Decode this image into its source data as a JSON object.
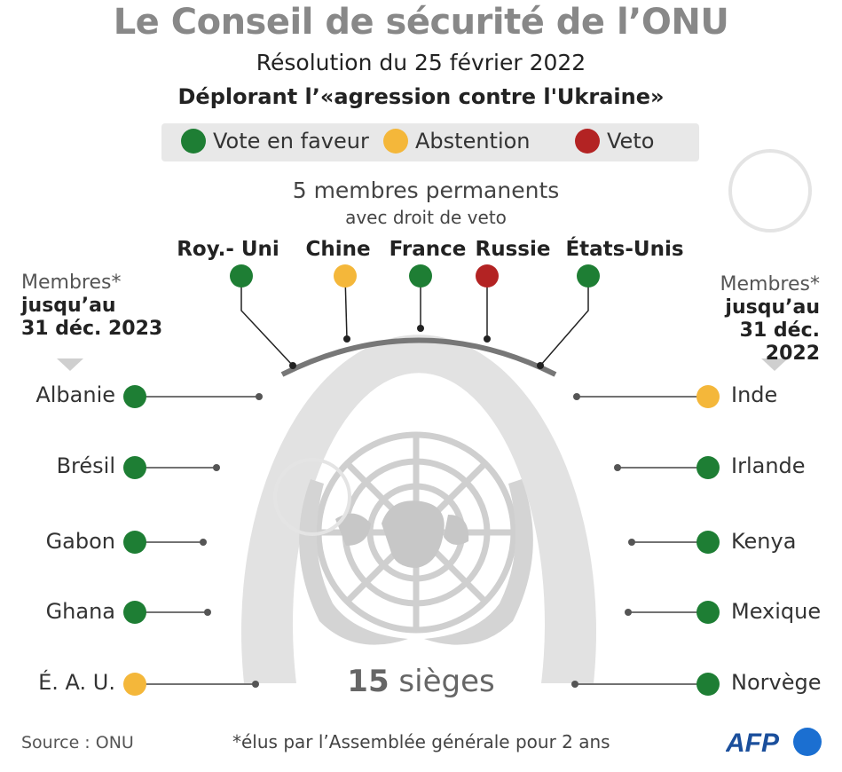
{
  "title": "Le Conseil de sécurité de l’ONU",
  "subtitle": "Résolution du 25 février 2022",
  "subtitle2": "Déplorant l’«agression contre l'Ukraine»",
  "legend": [
    {
      "label": "Vote en faveur",
      "color": "#1e7e34"
    },
    {
      "label": "Abstention",
      "color": "#f4b73a"
    },
    {
      "label": "Veto",
      "color": "#b32323"
    }
  ],
  "permanent": {
    "title": "5 membres permanents",
    "subtitle": "avec droit de veto",
    "members": [
      {
        "name": "Roy.- Uni",
        "vote": "favour"
      },
      {
        "name": "Chine",
        "vote": "abstention"
      },
      {
        "name": "France",
        "vote": "favour"
      },
      {
        "name": "Russie",
        "vote": "veto"
      },
      {
        "name": "États-Unis",
        "vote": "favour"
      }
    ]
  },
  "left_group": {
    "line1": "Membres*",
    "line2": "jusqu’au",
    "line3": "31 déc. 2023",
    "members": [
      {
        "name": "Albanie",
        "vote": "favour"
      },
      {
        "name": "Brésil",
        "vote": "favour"
      },
      {
        "name": "Gabon",
        "vote": "favour"
      },
      {
        "name": "Ghana",
        "vote": "favour"
      },
      {
        "name": "É. A. U.",
        "vote": "abstention"
      }
    ]
  },
  "right_group": {
    "line1": "Membres*",
    "line2": "jusqu’au",
    "line3": "31 déc. 2022",
    "members": [
      {
        "name": "Inde",
        "vote": "abstention"
      },
      {
        "name": "Irlande",
        "vote": "favour"
      },
      {
        "name": "Kenya",
        "vote": "favour"
      },
      {
        "name": "Mexique",
        "vote": "favour"
      },
      {
        "name": "Norvège",
        "vote": "favour"
      }
    ]
  },
  "seats": {
    "number": "15",
    "label": "sièges"
  },
  "source": "Source : ONU",
  "footnote": "*élus par l’Assemblée générale pour 2 ans",
  "logo_text": "AFP",
  "vote_colors": {
    "favour": "#1e7e34",
    "abstention": "#f4b73a",
    "veto": "#b32323"
  }
}
